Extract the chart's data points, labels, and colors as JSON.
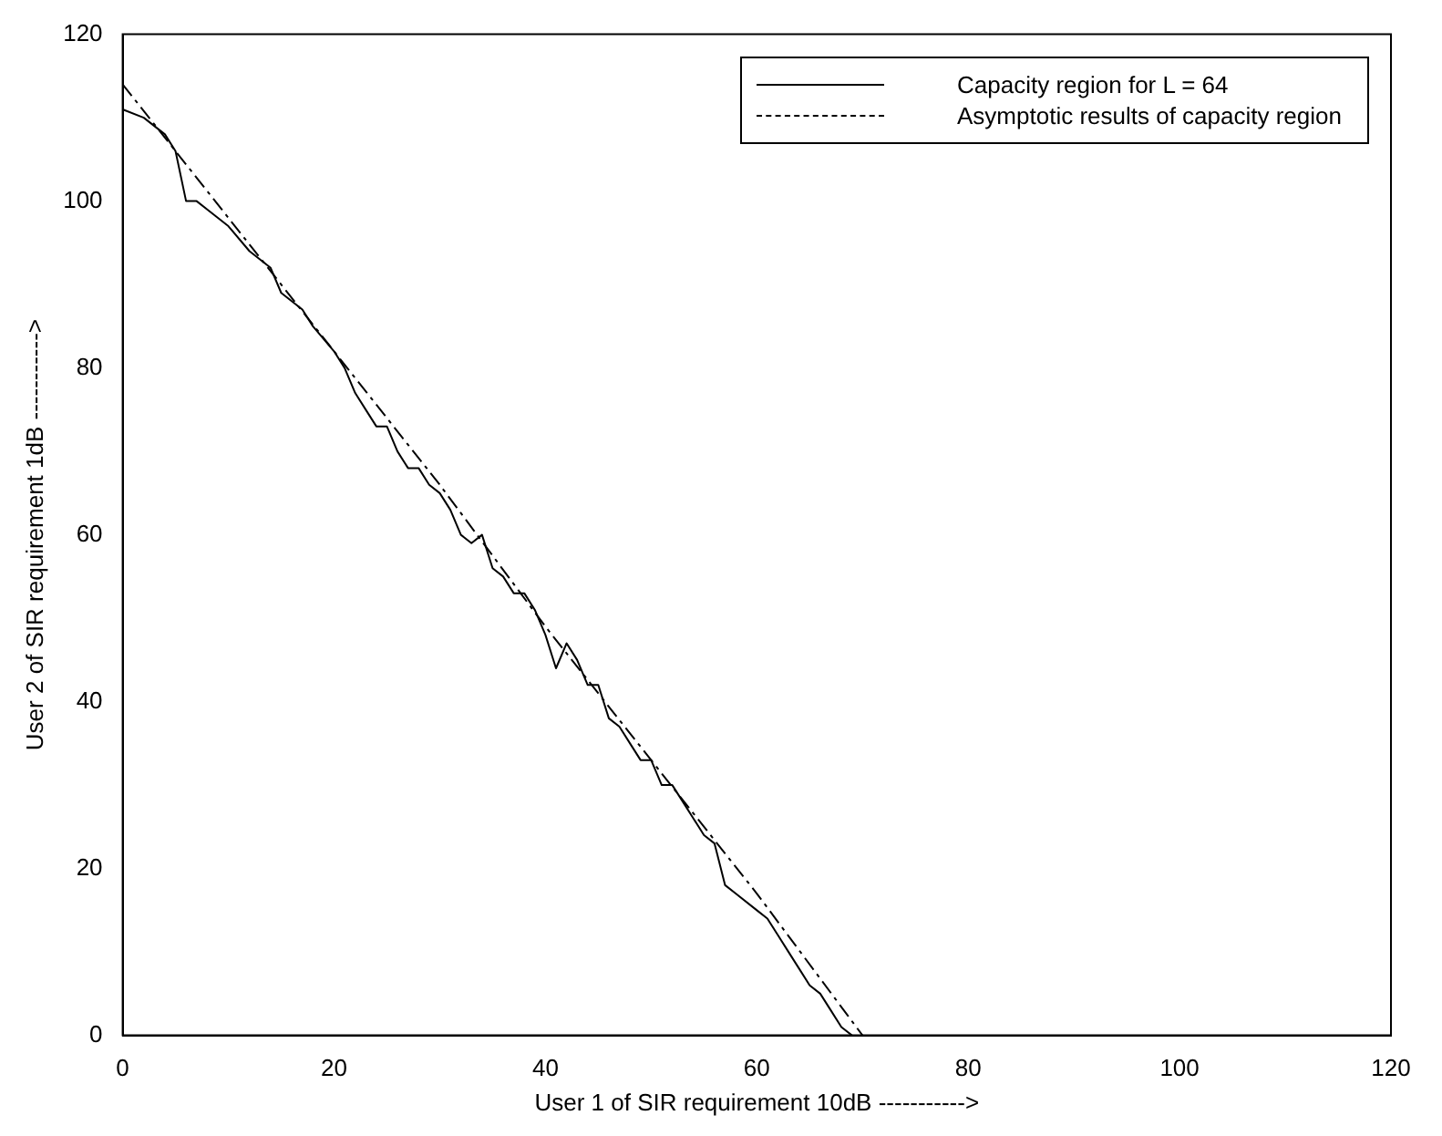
{
  "chart_data": {
    "type": "line",
    "xlabel": "User 1 of SIR requirement 10dB ----------->",
    "ylabel": "User 2 of SIR requirement 1dB ----------->",
    "xlim": [
      0,
      120
    ],
    "xticks": [
      0,
      20,
      40,
      60,
      80,
      100,
      120
    ],
    "ylim": [
      0,
      120
    ],
    "yticks": [
      0,
      20,
      40,
      60,
      80,
      100,
      120
    ],
    "grid": false,
    "legend": "top right",
    "marker": "none",
    "series": [
      {
        "name": "Capacity region for L = 64",
        "color": "#000000",
        "line_style": "solid",
        "x": [
          0,
          2,
          4,
          5,
          6,
          7,
          8,
          10,
          12,
          14,
          15,
          17,
          18,
          20,
          21,
          22,
          23,
          24,
          25,
          26,
          27,
          28,
          29,
          30,
          31,
          32,
          33,
          34,
          35,
          36,
          37,
          38,
          39,
          40,
          41,
          42,
          43,
          44,
          45,
          46,
          47,
          48,
          49,
          50,
          51,
          52,
          53,
          54,
          55,
          56,
          57,
          58,
          60,
          61,
          62,
          63,
          64,
          65,
          66,
          67,
          68,
          69
        ],
        "values": [
          111,
          110,
          108,
          106,
          100,
          100,
          99,
          97,
          94,
          92,
          89,
          87,
          85,
          82,
          80,
          77,
          75,
          73,
          73,
          70,
          68,
          68,
          66,
          65,
          63,
          60,
          59,
          60,
          56,
          55,
          53,
          53,
          51,
          48,
          44,
          47,
          45,
          42,
          42,
          38,
          37,
          35,
          33,
          33,
          30,
          30,
          28,
          26,
          24,
          23,
          18,
          17,
          15,
          14,
          12,
          10,
          8,
          6,
          5,
          3,
          1,
          0
        ]
      },
      {
        "name": "Asymptotic results of capacity region",
        "color": "#000000",
        "line_style": "dashed",
        "x": [
          0,
          10,
          20,
          30,
          40,
          50,
          60,
          70
        ],
        "values": [
          114,
          98,
          82,
          66,
          49,
          33,
          17,
          0
        ]
      }
    ]
  }
}
